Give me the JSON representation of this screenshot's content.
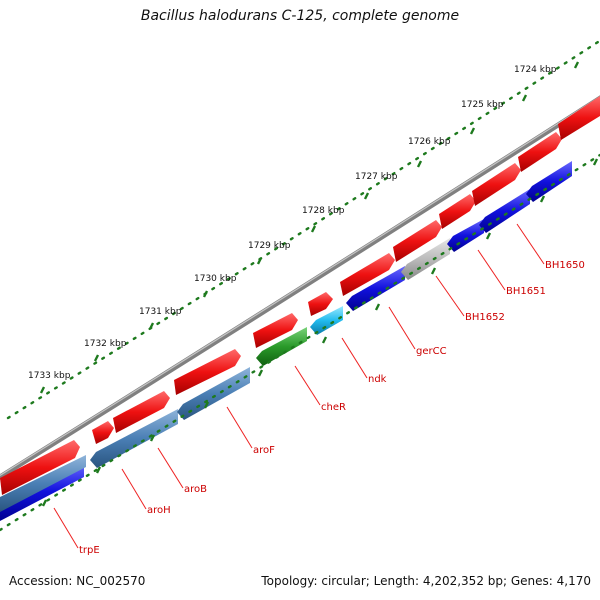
{
  "title": "Bacillus halodurans C-125, complete genome",
  "accession_text": "Accession: NC_002570",
  "summary_text": "Topology: circular; Length: 4,202,352 bp; Genes: 4,170",
  "scale_labels": [
    "1724 kbp",
    "1725 kbp",
    "1726 kbp",
    "1727 kbp",
    "1728 kbp",
    "1729 kbp",
    "1730 kbp",
    "1731 kbp",
    "1732 kbp",
    "1733 kbp"
  ],
  "gene_labels": [
    "BH1650",
    "BH1651",
    "BH1652",
    "gerCC",
    "ndk",
    "cheR",
    "aroF",
    "aroB",
    "aroH",
    "trpE"
  ],
  "colors": {
    "backbone": "#8a8a8a",
    "scale_ticks": "#1e7a1e",
    "cds_forward": "#ee1111",
    "cds_reverse": "#1111dd",
    "aro_genes": "#4a7fb5",
    "che_gene": "#2a9a2a",
    "ndk_gene": "#22bbee",
    "other_gene": "#bbbbbb",
    "label_color": "#cc0000"
  }
}
